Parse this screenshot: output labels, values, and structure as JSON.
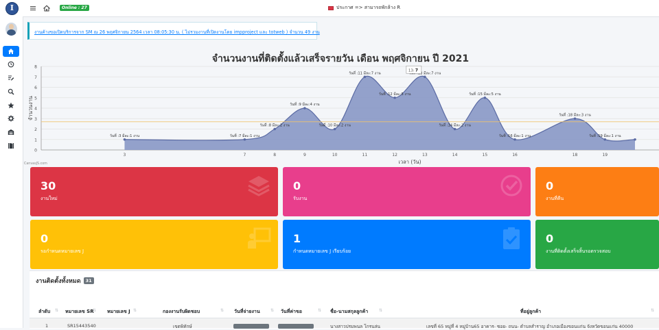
{
  "topbar": {
    "online_badge": "Online : 27",
    "announcement": "ประกาศ => สามารถพักล้าง R"
  },
  "alert": {
    "text": "งานค้างขอเปิดบริการจาก SM ณ 26 พฤศจิกายน 2564 เวลา 08:05:30 น. ( ไม่รวมงานที่เปิดงานโดย impproject และ totweb ) จำนวน 49 งาน"
  },
  "chart_data": {
    "type": "area",
    "title": "จำนวนงานที่ติดตั้งแล้วเสร็จรายวัน เดือน พฤศจิกายน ปี 2021",
    "xlabel": "เวลา (วัน)",
    "ylabel": "จำนวนงาน",
    "ylim": [
      0,
      8
    ],
    "yticks": [
      0,
      1,
      2,
      3,
      4,
      5,
      6,
      7,
      8
    ],
    "x": [
      3,
      7,
      8,
      9,
      10,
      11,
      12,
      13,
      14,
      15,
      16,
      18,
      19,
      20
    ],
    "xticks": [
      3,
      7,
      8,
      9,
      10,
      11,
      12,
      13,
      14,
      15,
      16,
      18,
      19
    ],
    "values": [
      1,
      1,
      2,
      4,
      2,
      7,
      5,
      7,
      2,
      5,
      1,
      3,
      1,
      1
    ],
    "point_labels": [
      "วันที่ :3 มีละ:1 งาน",
      "วันที่ :7 มีละ:1 งาน",
      "วันที่ :8 มีละ:2 งาน",
      "วันที่ :9 มีละ:4 งาน",
      "วันที่ :10 มีละ:2 งาน",
      "วันที่ :11 มีละ:7 งาน",
      "วันที่ :12 มีละ:5 งาน",
      "วันที่ :13 มีละ:7 งาน",
      "วันที่ :14 มีละ:2 งาน",
      "วันที่ :15 มีละ:5 งาน",
      "วันที่ :16 มีละ:1 งาน",
      "วันที่ :18 มีละ:3 งาน",
      "วันที่ :19 มีละ:1 งาน",
      ""
    ],
    "tooltip": {
      "label": "13:",
      "value": "7"
    },
    "reference_line": 2.7,
    "credit": "CanvasJS.com",
    "color": "#8d9cc8",
    "line_color": "#5a6aa3"
  },
  "cards": [
    {
      "value": "30",
      "label": "งานใหม่",
      "color": "#dc3545",
      "icon": "layers-icon"
    },
    {
      "value": "0",
      "label": "รับงาน",
      "color": "#e83e8c",
      "icon": "check-circle-icon"
    },
    {
      "value": "0",
      "label": "งานที่คืน",
      "color": "#fd7e14",
      "icon": "undo-icon"
    },
    {
      "value": "0",
      "label": "รอกำหนดหมายเลข J",
      "color": "#ffc107",
      "icon": "presentation-icon"
    },
    {
      "value": "1",
      "label": "กำหนดหมายเลข J เรียบร้อย",
      "color": "#007bff",
      "icon": "clipboard-check-icon"
    },
    {
      "value": "0",
      "label": "งานที่ติดตั้งเสร็จสิ้นรอตรวจสอบ",
      "color": "#28a745",
      "icon": "check-icon"
    }
  ],
  "section": {
    "title": "งานติดตั้งทั้งหมด",
    "count": "31"
  },
  "table": {
    "headers": [
      "ลำดับ",
      "หมายเลข SR",
      "หมายเลข J",
      "กองงานรับผิดชอบ",
      "วันที่จ่ายงาน",
      "วันที่ค่าขอ",
      "ชื่อ-นามสกุลลูกค้า",
      "ที่อยู่ลูกค้า"
    ],
    "rows": [
      [
        "1",
        "SR15443540",
        "",
        "เขตพิทักษ์",
        "",
        "",
        "นางสาวปรมพนล โกรนล่น",
        "เลขที่ 65 หมู่ที่ 4 หมู่บ้าน65 อาคาร- ซอย- ถนน- ตำบลสำราญ อำเภอเมืองขอนแก่น จังหวัดขอนแก่น 40000"
      ]
    ]
  },
  "sidebar": {
    "logo": "I"
  }
}
